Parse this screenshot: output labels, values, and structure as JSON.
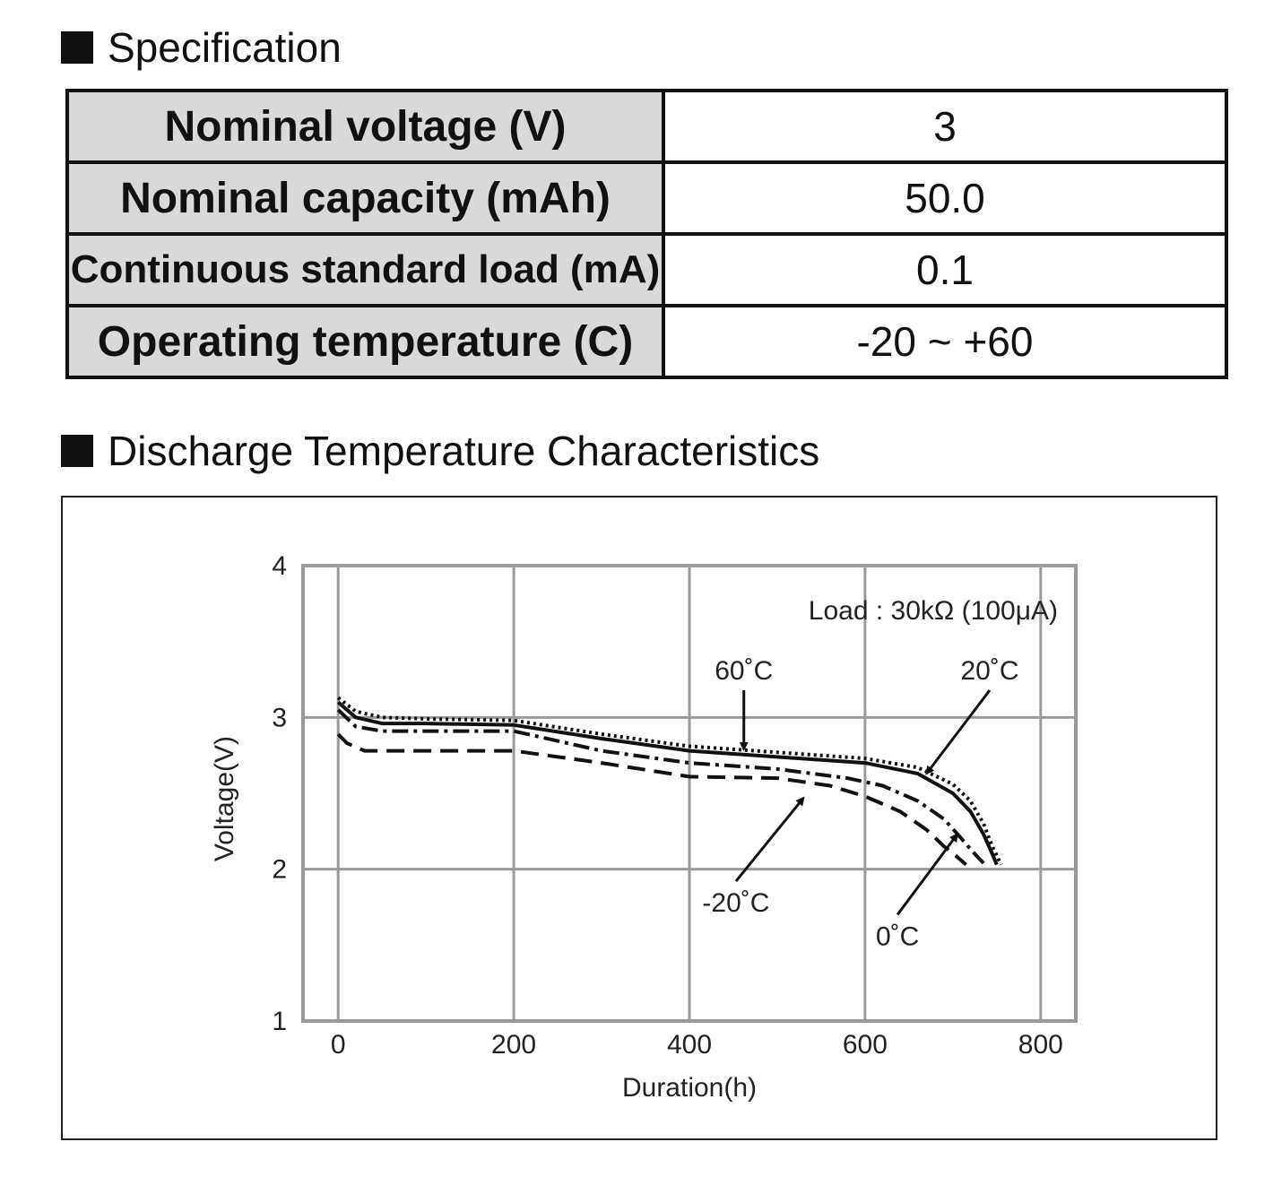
{
  "spec_section": {
    "title": "Specification",
    "rows": [
      {
        "label": "Nominal voltage (V)",
        "value": "3"
      },
      {
        "label": "Nominal capacity (mAh)",
        "value": "50.0"
      },
      {
        "label": "Continuous standard load (mA)",
        "value": "0.1"
      },
      {
        "label": "Operating temperature (C)",
        "value": "-20 ~ +60"
      }
    ]
  },
  "chart_section": {
    "title": "Discharge Temperature Characteristics"
  },
  "chart_data": {
    "type": "line",
    "title": "",
    "xlabel": "Duration(h)",
    "ylabel": "Voltage(V)",
    "xlim": [
      -40,
      840
    ],
    "ylim": [
      1,
      4
    ],
    "xticks": [
      0,
      200,
      400,
      600,
      800
    ],
    "yticks": [
      1,
      2,
      3,
      4
    ],
    "grid": true,
    "annotation": "Load : 30kΩ (100μA)",
    "series": [
      {
        "name": "60˚C",
        "style": "dotted",
        "x": [
          0,
          20,
          50,
          100,
          200,
          300,
          400,
          500,
          600,
          660,
          700,
          720,
          735,
          745,
          755
        ],
        "y": [
          3.13,
          3.04,
          3.0,
          2.99,
          2.98,
          2.89,
          2.81,
          2.77,
          2.73,
          2.67,
          2.56,
          2.45,
          2.3,
          2.15,
          2.03
        ],
        "label_text": "60˚C"
      },
      {
        "name": "20˚C",
        "style": "solid",
        "x": [
          0,
          20,
          50,
          100,
          200,
          300,
          400,
          500,
          600,
          660,
          700,
          720,
          735,
          745,
          750
        ],
        "y": [
          3.1,
          3.0,
          2.96,
          2.96,
          2.95,
          2.86,
          2.78,
          2.74,
          2.7,
          2.63,
          2.5,
          2.38,
          2.23,
          2.1,
          2.03
        ],
        "label_text": "20˚C"
      },
      {
        "name": "0˚C",
        "style": "dashdot",
        "x": [
          0,
          20,
          50,
          100,
          200,
          300,
          400,
          500,
          580,
          620,
          660,
          690,
          710,
          725,
          735
        ],
        "y": [
          3.05,
          2.94,
          2.91,
          2.91,
          2.91,
          2.78,
          2.7,
          2.66,
          2.6,
          2.55,
          2.45,
          2.33,
          2.2,
          2.1,
          2.04
        ],
        "label_text": "0˚C"
      },
      {
        "name": "-20˚C",
        "style": "dashed",
        "x": [
          0,
          10,
          30,
          100,
          200,
          300,
          400,
          500,
          560,
          600,
          640,
          670,
          690,
          705,
          715
        ],
        "y": [
          2.89,
          2.83,
          2.78,
          2.78,
          2.78,
          2.7,
          2.61,
          2.6,
          2.55,
          2.48,
          2.38,
          2.26,
          2.15,
          2.08,
          2.03
        ],
        "label_text": "-20˚C"
      }
    ]
  }
}
